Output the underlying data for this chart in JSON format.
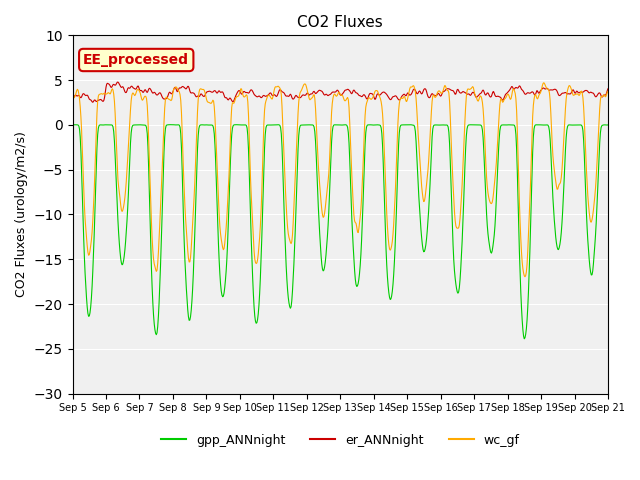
{
  "title": "CO2 Fluxes",
  "ylabel": "CO2 Fluxes (urology/m2/s)",
  "xlabel": "",
  "ylim": [
    -30,
    10
  ],
  "background_color": "#f0f0f0",
  "figure_bg": "#ffffff",
  "grid_color": "#ffffff",
  "line_green": "#00cc00",
  "line_red": "#cc0000",
  "line_orange": "#ffaa00",
  "legend_labels": [
    "gpp_ANNnight",
    "er_ANNnight",
    "wc_gf"
  ],
  "annotation_text": "EE_processed",
  "annotation_bg": "#ffffcc",
  "annotation_border": "#cc0000",
  "n_days": 16,
  "points_per_day": 48,
  "start_day": 5
}
